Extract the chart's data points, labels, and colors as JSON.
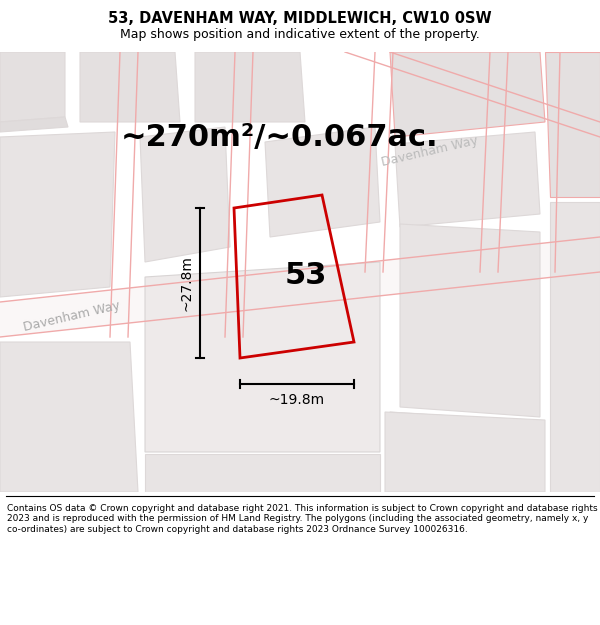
{
  "title": "53, DAVENHAM WAY, MIDDLEWICH, CW10 0SW",
  "subtitle": "Map shows position and indicative extent of the property.",
  "area_text": "~270m²/~0.067ac.",
  "plot_number": "53",
  "dim_height": "~27.8m",
  "dim_width": "~19.8m",
  "footer_text": "Contains OS data © Crown copyright and database right 2021. This information is subject to Crown copyright and database rights 2023 and is reproduced with the permission of HM Land Registry. The polygons (including the associated geometry, namely x, y co-ordinates) are subject to Crown copyright and database rights 2023 Ordnance Survey 100026316.",
  "road_label_left": "Davenham Way",
  "road_label_top": "Davenham Way",
  "bg_color": "#f5f2f2",
  "block_color": "#e8e5e5",
  "road_line_color": "#f0aaaa",
  "block_edge_color": "#ddd8d8",
  "plot_color": "#cc0000",
  "title_fontsize": 10.5,
  "subtitle_fontsize": 9.0,
  "area_fontsize": 22,
  "plot_num_fontsize": 22,
  "dim_fontsize": 10,
  "footer_fontsize": 6.5,
  "road_label_fontsize": 9
}
